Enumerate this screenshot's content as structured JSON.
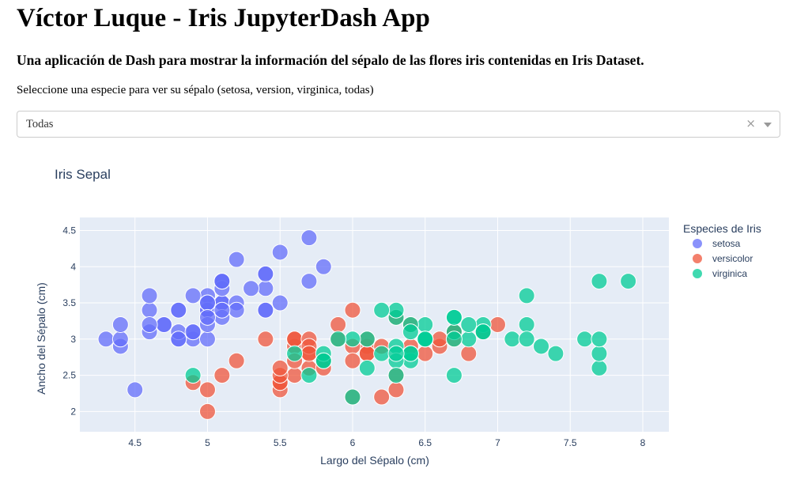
{
  "header": {
    "title": "Víctor Luque - Iris JupyterDash App",
    "subtitle": "Una aplicación de Dash para mostrar la información del sépalo de las flores iris contenidas en Iris Dataset.",
    "prompt": "Seleccione una especie para ver su sépalo (setosa, version, virginica, todas)"
  },
  "dropdown": {
    "value": "Todas",
    "clear_icon": "×",
    "clear_icon_name": "clear-icon",
    "arrow_icon_name": "chevron-down-icon"
  },
  "chart_data": {
    "type": "scatter",
    "title": "Iris Sepal",
    "xlabel": "Largo del Sépalo (cm)",
    "ylabel": "Ancho del Sépalo (cm)",
    "xlim": [
      4.12,
      8.18
    ],
    "ylim": [
      1.72,
      4.68
    ],
    "xticks": [
      "4.5",
      "5",
      "5.5",
      "6",
      "6.5",
      "7",
      "7.5",
      "8"
    ],
    "xtick_values": [
      4.5,
      5,
      5.5,
      6,
      6.5,
      7,
      7.5,
      8
    ],
    "yticks": [
      "2",
      "2.5",
      "3",
      "3.5",
      "4",
      "4.5"
    ],
    "ytick_values": [
      2,
      2.5,
      3,
      3.5,
      4,
      4.5
    ],
    "grid": true,
    "legend_title": "Especies de Iris",
    "legend_position": "right",
    "plot_bgcolor": "#E5ECF6",
    "series": [
      {
        "name": "setosa",
        "color": "#636EFA",
        "points": [
          [
            5.1,
            3.5
          ],
          [
            4.9,
            3.0
          ],
          [
            4.7,
            3.2
          ],
          [
            4.6,
            3.1
          ],
          [
            5.0,
            3.6
          ],
          [
            5.4,
            3.9
          ],
          [
            4.6,
            3.4
          ],
          [
            5.0,
            3.4
          ],
          [
            4.4,
            2.9
          ],
          [
            4.9,
            3.1
          ],
          [
            5.4,
            3.7
          ],
          [
            4.8,
            3.4
          ],
          [
            4.8,
            3.0
          ],
          [
            4.3,
            3.0
          ],
          [
            5.8,
            4.0
          ],
          [
            5.7,
            4.4
          ],
          [
            5.4,
            3.9
          ],
          [
            5.1,
            3.5
          ],
          [
            5.7,
            3.8
          ],
          [
            5.1,
            3.8
          ],
          [
            5.4,
            3.4
          ],
          [
            5.1,
            3.7
          ],
          [
            4.6,
            3.6
          ],
          [
            5.1,
            3.3
          ],
          [
            4.8,
            3.4
          ],
          [
            5.0,
            3.0
          ],
          [
            5.0,
            3.4
          ],
          [
            5.2,
            3.5
          ],
          [
            5.2,
            3.4
          ],
          [
            4.7,
            3.2
          ],
          [
            4.8,
            3.1
          ],
          [
            5.4,
            3.4
          ],
          [
            5.2,
            4.1
          ],
          [
            5.5,
            4.2
          ],
          [
            4.9,
            3.1
          ],
          [
            5.0,
            3.2
          ],
          [
            5.5,
            3.5
          ],
          [
            4.9,
            3.6
          ],
          [
            4.4,
            3.0
          ],
          [
            5.1,
            3.4
          ],
          [
            5.0,
            3.5
          ],
          [
            4.5,
            2.3
          ],
          [
            4.4,
            3.2
          ],
          [
            5.0,
            3.5
          ],
          [
            5.1,
            3.8
          ],
          [
            4.8,
            3.0
          ],
          [
            5.1,
            3.8
          ],
          [
            4.6,
            3.2
          ],
          [
            5.3,
            3.7
          ],
          [
            5.0,
            3.3
          ]
        ]
      },
      {
        "name": "versicolor",
        "color": "#EF553B",
        "points": [
          [
            7.0,
            3.2
          ],
          [
            6.4,
            3.2
          ],
          [
            6.9,
            3.1
          ],
          [
            5.5,
            2.3
          ],
          [
            6.5,
            2.8
          ],
          [
            5.7,
            2.8
          ],
          [
            6.3,
            3.3
          ],
          [
            4.9,
            2.4
          ],
          [
            6.6,
            2.9
          ],
          [
            5.2,
            2.7
          ],
          [
            5.0,
            2.0
          ],
          [
            5.9,
            3.0
          ],
          [
            6.0,
            2.2
          ],
          [
            6.1,
            2.9
          ],
          [
            5.6,
            2.9
          ],
          [
            6.7,
            3.1
          ],
          [
            5.6,
            3.0
          ],
          [
            5.8,
            2.7
          ],
          [
            6.2,
            2.2
          ],
          [
            5.6,
            2.5
          ],
          [
            5.9,
            3.2
          ],
          [
            6.1,
            2.8
          ],
          [
            6.3,
            2.5
          ],
          [
            6.1,
            2.8
          ],
          [
            6.4,
            2.9
          ],
          [
            6.6,
            3.0
          ],
          [
            6.8,
            2.8
          ],
          [
            6.7,
            3.0
          ],
          [
            6.0,
            2.9
          ],
          [
            5.7,
            2.6
          ],
          [
            5.5,
            2.4
          ],
          [
            5.5,
            2.4
          ],
          [
            5.8,
            2.7
          ],
          [
            6.0,
            2.7
          ],
          [
            5.4,
            3.0
          ],
          [
            6.0,
            3.4
          ],
          [
            6.7,
            3.1
          ],
          [
            6.3,
            2.3
          ],
          [
            5.6,
            3.0
          ],
          [
            5.5,
            2.5
          ],
          [
            5.5,
            2.6
          ],
          [
            6.1,
            3.0
          ],
          [
            5.8,
            2.6
          ],
          [
            5.0,
            2.3
          ],
          [
            5.6,
            2.7
          ],
          [
            5.7,
            3.0
          ],
          [
            5.7,
            2.9
          ],
          [
            6.2,
            2.9
          ],
          [
            5.1,
            2.5
          ],
          [
            5.7,
            2.8
          ]
        ]
      },
      {
        "name": "virginica",
        "color": "#00CC96",
        "points": [
          [
            6.3,
            3.3
          ],
          [
            5.8,
            2.7
          ],
          [
            7.1,
            3.0
          ],
          [
            6.3,
            2.9
          ],
          [
            6.5,
            3.0
          ],
          [
            7.6,
            3.0
          ],
          [
            4.9,
            2.5
          ],
          [
            7.3,
            2.9
          ],
          [
            6.7,
            2.5
          ],
          [
            7.2,
            3.6
          ],
          [
            6.5,
            3.2
          ],
          [
            6.4,
            2.7
          ],
          [
            6.8,
            3.0
          ],
          [
            5.7,
            2.5
          ],
          [
            5.8,
            2.8
          ],
          [
            6.4,
            3.2
          ],
          [
            6.5,
            3.0
          ],
          [
            7.7,
            3.8
          ],
          [
            7.7,
            2.6
          ],
          [
            6.0,
            2.2
          ],
          [
            6.9,
            3.2
          ],
          [
            5.6,
            2.8
          ],
          [
            7.7,
            2.8
          ],
          [
            6.3,
            2.7
          ],
          [
            6.7,
            3.3
          ],
          [
            7.2,
            3.2
          ],
          [
            6.2,
            2.8
          ],
          [
            6.1,
            3.0
          ],
          [
            6.4,
            2.8
          ],
          [
            7.2,
            3.0
          ],
          [
            7.4,
            2.8
          ],
          [
            7.9,
            3.8
          ],
          [
            6.4,
            2.8
          ],
          [
            6.3,
            2.8
          ],
          [
            6.1,
            2.6
          ],
          [
            7.7,
            3.0
          ],
          [
            6.3,
            3.4
          ],
          [
            6.4,
            3.1
          ],
          [
            6.0,
            3.0
          ],
          [
            6.9,
            3.1
          ],
          [
            6.7,
            3.1
          ],
          [
            6.9,
            3.1
          ],
          [
            5.8,
            2.7
          ],
          [
            6.8,
            3.2
          ],
          [
            6.7,
            3.3
          ],
          [
            6.7,
            3.0
          ],
          [
            6.3,
            2.5
          ],
          [
            6.5,
            3.0
          ],
          [
            6.2,
            3.4
          ],
          [
            5.9,
            3.0
          ]
        ]
      }
    ]
  }
}
